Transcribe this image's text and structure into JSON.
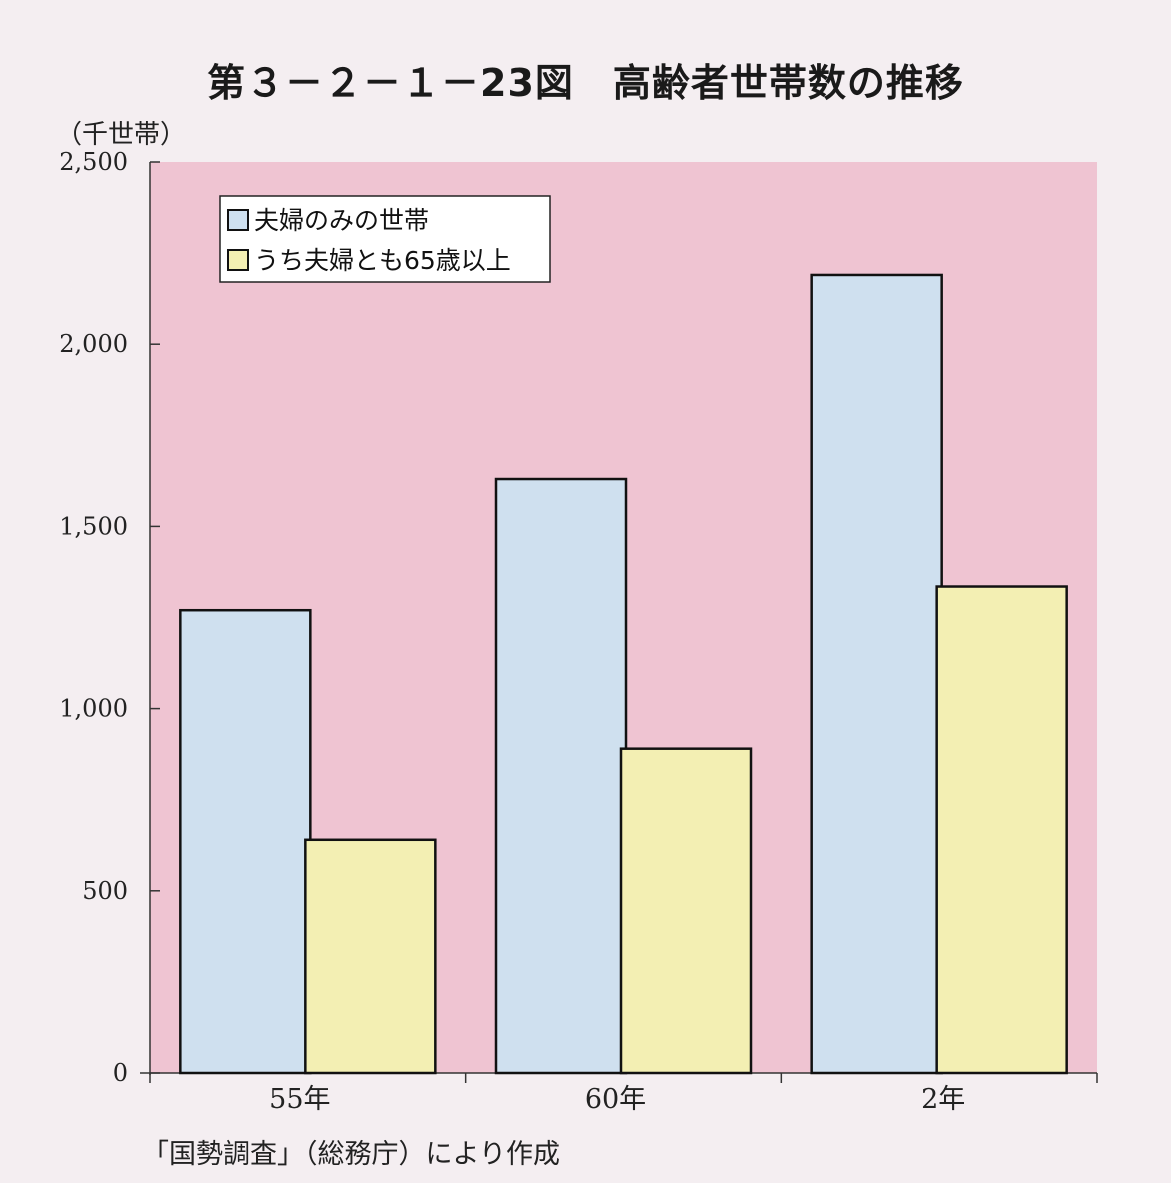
{
  "title": "第３－２－１－23図　高齢者世帯数の推移",
  "unit_label": "（千世帯）",
  "source_note": "「国勢調査」（総務庁）により作成",
  "colors": {
    "plot_background": "#efc4d2",
    "series_1": "#cfe0ef",
    "series_2": "#f3efb3",
    "bar_stroke": "#111111"
  },
  "chart_data": {
    "type": "bar",
    "categories": [
      "55年",
      "60年",
      "2年"
    ],
    "series": [
      {
        "name": "夫婦のみの世帯",
        "values": [
          1270,
          1630,
          2190
        ]
      },
      {
        "name": "うち夫婦とも65歳以上",
        "values": [
          640,
          890,
          1335
        ]
      }
    ],
    "ylabel": "（千世帯）",
    "ylim": [
      0,
      2500
    ],
    "yticks": [
      0,
      500,
      1000,
      1500,
      2000,
      2500
    ],
    "ytick_labels": [
      "0",
      "500",
      "1,000",
      "1,500",
      "2,000",
      "2,500"
    ],
    "legend_position": "top-left",
    "grid": false
  }
}
